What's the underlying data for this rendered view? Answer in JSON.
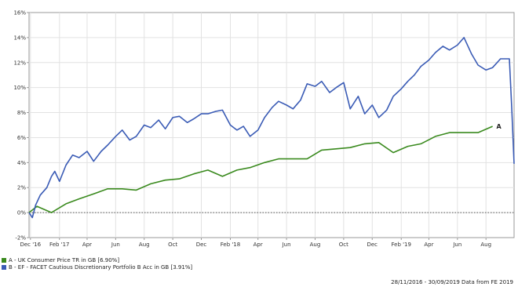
{
  "chart_data": {
    "type": "line",
    "title": "",
    "xlabel": "",
    "ylabel": "",
    "x_range": [
      "2016-11-28",
      "2019-09-30"
    ],
    "ylim": [
      -2,
      16
    ],
    "y_ticks": [
      -2,
      0,
      2,
      4,
      6,
      8,
      10,
      12,
      14,
      16
    ],
    "y_tick_labels": [
      "-2%",
      "0%",
      "2%",
      "4%",
      "6%",
      "8%",
      "10%",
      "12%",
      "14%",
      "16%"
    ],
    "x_ticks": [
      {
        "date": "2016-12-01",
        "label": "Dec '16"
      },
      {
        "date": "2017-02-01",
        "label": "Feb '17"
      },
      {
        "date": "2017-04-01",
        "label": "Apr"
      },
      {
        "date": "2017-06-01",
        "label": "Jun"
      },
      {
        "date": "2017-08-01",
        "label": "Aug"
      },
      {
        "date": "2017-10-01",
        "label": "Oct"
      },
      {
        "date": "2017-12-01",
        "label": "Dec"
      },
      {
        "date": "2018-02-01",
        "label": "Feb '18"
      },
      {
        "date": "2018-04-01",
        "label": "Apr"
      },
      {
        "date": "2018-06-01",
        "label": "Jun"
      },
      {
        "date": "2018-08-01",
        "label": "Aug"
      },
      {
        "date": "2018-10-01",
        "label": "Oct"
      },
      {
        "date": "2018-12-01",
        "label": "Dec"
      },
      {
        "date": "2019-02-01",
        "label": "Feb '19"
      },
      {
        "date": "2019-04-01",
        "label": "Apr"
      },
      {
        "date": "2019-06-01",
        "label": "Jun"
      },
      {
        "date": "2019-08-01",
        "label": "Aug"
      }
    ],
    "grid": true,
    "zero_line": "dotted",
    "series": [
      {
        "name": "A - UK Consumer Price TR in GB [6.90%]",
        "end_label": "A",
        "color": "#3a8a1e",
        "points": [
          [
            "2016-11-28",
            0.0
          ],
          [
            "2016-12-15",
            0.5
          ],
          [
            "2017-01-15",
            0.0
          ],
          [
            "2017-02-15",
            0.7
          ],
          [
            "2017-03-15",
            1.1
          ],
          [
            "2017-04-15",
            1.5
          ],
          [
            "2017-05-15",
            1.9
          ],
          [
            "2017-06-15",
            1.9
          ],
          [
            "2017-07-15",
            1.8
          ],
          [
            "2017-08-15",
            2.3
          ],
          [
            "2017-09-15",
            2.6
          ],
          [
            "2017-10-15",
            2.7
          ],
          [
            "2017-11-15",
            3.1
          ],
          [
            "2017-12-15",
            3.4
          ],
          [
            "2018-01-15",
            2.9
          ],
          [
            "2018-02-15",
            3.4
          ],
          [
            "2018-03-15",
            3.6
          ],
          [
            "2018-04-15",
            4.0
          ],
          [
            "2018-05-15",
            4.3
          ],
          [
            "2018-06-15",
            4.3
          ],
          [
            "2018-07-15",
            4.3
          ],
          [
            "2018-08-15",
            5.0
          ],
          [
            "2018-09-15",
            5.1
          ],
          [
            "2018-10-15",
            5.2
          ],
          [
            "2018-11-15",
            5.5
          ],
          [
            "2018-12-15",
            5.6
          ],
          [
            "2019-01-15",
            4.8
          ],
          [
            "2019-02-15",
            5.3
          ],
          [
            "2019-03-15",
            5.5
          ],
          [
            "2019-04-15",
            6.1
          ],
          [
            "2019-05-15",
            6.4
          ],
          [
            "2019-06-15",
            6.4
          ],
          [
            "2019-07-15",
            6.4
          ],
          [
            "2019-08-15",
            6.9
          ]
        ]
      },
      {
        "name": "B - EF - FACET Cautious Discretionary Portfolio B Acc in GB [3.91%]",
        "end_label": "",
        "color": "#3a5bb5",
        "points": [
          [
            "2016-11-28",
            0.0
          ],
          [
            "2016-12-05",
            -0.4
          ],
          [
            "2016-12-12",
            0.6
          ],
          [
            "2016-12-22",
            1.4
          ],
          [
            "2017-01-05",
            2.0
          ],
          [
            "2017-01-15",
            2.9
          ],
          [
            "2017-01-22",
            3.3
          ],
          [
            "2017-02-01",
            2.5
          ],
          [
            "2017-02-15",
            3.8
          ],
          [
            "2017-03-01",
            4.6
          ],
          [
            "2017-03-15",
            4.4
          ],
          [
            "2017-04-01",
            4.9
          ],
          [
            "2017-04-15",
            4.1
          ],
          [
            "2017-05-01",
            4.9
          ],
          [
            "2017-05-15",
            5.4
          ],
          [
            "2017-06-01",
            6.1
          ],
          [
            "2017-06-15",
            6.6
          ],
          [
            "2017-07-01",
            5.8
          ],
          [
            "2017-07-15",
            6.1
          ],
          [
            "2017-08-01",
            7.0
          ],
          [
            "2017-08-15",
            6.8
          ],
          [
            "2017-09-01",
            7.4
          ],
          [
            "2017-09-15",
            6.7
          ],
          [
            "2017-10-01",
            7.6
          ],
          [
            "2017-10-15",
            7.7
          ],
          [
            "2017-11-01",
            7.2
          ],
          [
            "2017-11-15",
            7.5
          ],
          [
            "2017-12-01",
            7.9
          ],
          [
            "2017-12-15",
            7.9
          ],
          [
            "2018-01-01",
            8.1
          ],
          [
            "2018-01-15",
            8.2
          ],
          [
            "2018-02-01",
            7.0
          ],
          [
            "2018-02-15",
            6.6
          ],
          [
            "2018-03-01",
            6.9
          ],
          [
            "2018-03-15",
            6.1
          ],
          [
            "2018-04-01",
            6.6
          ],
          [
            "2018-04-15",
            7.6
          ],
          [
            "2018-05-01",
            8.4
          ],
          [
            "2018-05-15",
            8.9
          ],
          [
            "2018-06-01",
            8.6
          ],
          [
            "2018-06-15",
            8.3
          ],
          [
            "2018-07-01",
            9.0
          ],
          [
            "2018-07-15",
            10.3
          ],
          [
            "2018-08-01",
            10.1
          ],
          [
            "2018-08-15",
            10.5
          ],
          [
            "2018-09-01",
            9.6
          ],
          [
            "2018-09-15",
            10.0
          ],
          [
            "2018-10-01",
            10.4
          ],
          [
            "2018-10-15",
            8.3
          ],
          [
            "2018-11-01",
            9.3
          ],
          [
            "2018-11-15",
            7.9
          ],
          [
            "2018-12-01",
            8.6
          ],
          [
            "2018-12-15",
            7.6
          ],
          [
            "2019-01-01",
            8.2
          ],
          [
            "2019-01-15",
            9.3
          ],
          [
            "2019-02-01",
            9.9
          ],
          [
            "2019-02-15",
            10.5
          ],
          [
            "2019-03-01",
            11.0
          ],
          [
            "2019-03-15",
            11.7
          ],
          [
            "2019-04-01",
            12.2
          ],
          [
            "2019-04-15",
            12.8
          ],
          [
            "2019-05-01",
            13.3
          ],
          [
            "2019-05-15",
            13.0
          ],
          [
            "2019-06-01",
            13.4
          ],
          [
            "2019-06-15",
            14.0
          ],
          [
            "2019-07-01",
            12.7
          ],
          [
            "2019-07-15",
            11.8
          ],
          [
            "2019-08-01",
            11.4
          ],
          [
            "2019-08-15",
            11.6
          ],
          [
            "2019-09-01",
            12.3
          ],
          [
            "2019-09-20",
            12.3
          ],
          [
            "2019-09-25",
            8.4
          ],
          [
            "2019-09-30",
            3.9
          ]
        ]
      }
    ]
  },
  "legend": {
    "a": {
      "text": "A - UK Consumer Price TR in GB [6.90%]",
      "color": "#3a8a1e"
    },
    "b": {
      "text": "B - EF - FACET Cautious Discretionary Portfolio B Acc in GB [3.91%]",
      "color": "#3a5bb5"
    }
  },
  "footer": "28/11/2016 - 30/09/2019 Data from FE 2019"
}
